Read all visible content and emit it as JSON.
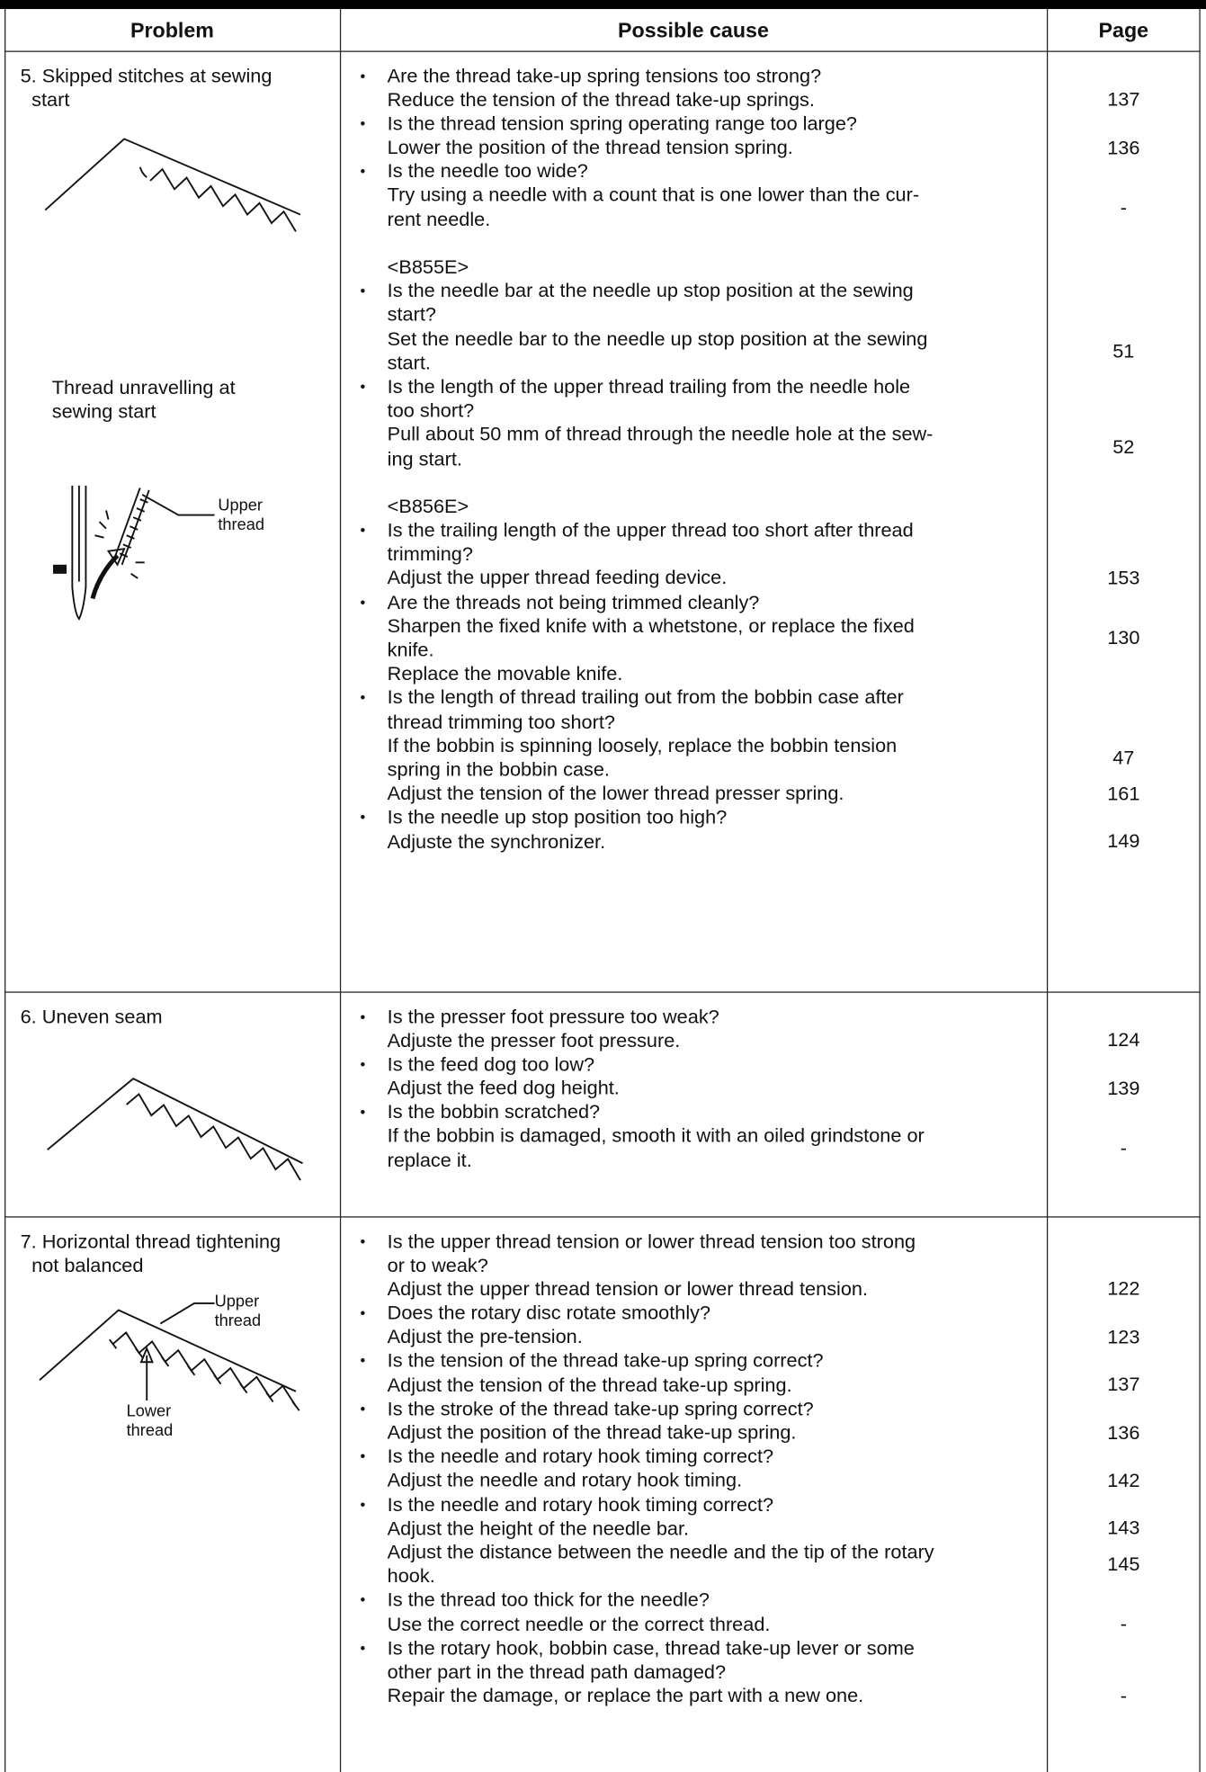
{
  "header": {
    "columns": [
      "Problem",
      "Possible cause",
      "Page"
    ]
  },
  "rows": [
    {
      "problem": [
        "5. Skipped stitches at sewing",
        "start"
      ],
      "note": [
        "Thread unravelling at",
        "sewing start"
      ],
      "figure_labels": [
        "Upper thread"
      ],
      "groups": [
        {
          "items": [
            {
              "question": [
                "Are the thread take-up spring tensions too strong?"
              ],
              "remedies": [
                {
                  "lines": [
                    "Reduce the tension of the thread take-up springs."
                  ],
                  "page": "137"
                }
              ]
            },
            {
              "question": [
                "Is the thread tension spring operating range too large?"
              ],
              "remedies": [
                {
                  "lines": [
                    "Lower the position of the thread tension spring."
                  ],
                  "page": "136"
                }
              ]
            },
            {
              "question": [
                "Is the needle too wide?"
              ],
              "remedies": [
                {
                  "lines": [
                    "Try using a needle with a count that is one lower than the cur-",
                    "rent needle."
                  ],
                  "page": "-"
                }
              ]
            }
          ]
        },
        {
          "model": "<B855E>",
          "items": [
            {
              "question": [
                "Is the needle bar at the needle up stop position at the sewing",
                "start?"
              ],
              "remedies": [
                {
                  "lines": [
                    "Set the needle bar to the needle up stop position at the sewing",
                    "start."
                  ],
                  "page": "51"
                }
              ]
            },
            {
              "question": [
                "Is the length of the upper thread trailing from the needle hole",
                "too short?"
              ],
              "remedies": [
                {
                  "lines": [
                    "Pull about 50 mm of thread through the needle hole at the sew-",
                    "ing start."
                  ],
                  "page": "52"
                }
              ]
            }
          ]
        },
        {
          "model": "<B856E>",
          "items": [
            {
              "question": [
                "Is the trailing length of the upper thread too short after thread",
                "trimming?"
              ],
              "remedies": [
                {
                  "lines": [
                    "Adjust the upper thread feeding device."
                  ],
                  "page": "153"
                }
              ]
            },
            {
              "question": [
                "Are the threads not being trimmed cleanly?"
              ],
              "remedies": [
                {
                  "lines": [
                    "Sharpen the fixed knife with a whetstone, or replace the fixed",
                    "knife."
                  ],
                  "page": "130"
                },
                {
                  "lines": [
                    "Replace the movable knife."
                  ]
                }
              ]
            },
            {
              "question": [
                "Is the length of thread trailing out from the bobbin case after",
                "thread trimming too short?"
              ],
              "remedies": [
                {
                  "lines": [
                    "If the bobbin is spinning loosely, replace the bobbin tension",
                    "spring in the bobbin case."
                  ],
                  "page": "47"
                },
                {
                  "lines": [
                    "Adjust the tension of the lower thread presser spring."
                  ],
                  "page": "161"
                }
              ]
            },
            {
              "question": [
                "Is the needle up stop position too high?"
              ],
              "remedies": [
                {
                  "lines": [
                    "Adjuste the synchronizer."
                  ],
                  "page": "149"
                }
              ]
            }
          ]
        }
      ]
    },
    {
      "problem": [
        "6. Uneven seam"
      ],
      "groups": [
        {
          "items": [
            {
              "question": [
                "Is the presser foot pressure too weak?"
              ],
              "remedies": [
                {
                  "lines": [
                    "Adjuste the presser foot pressure."
                  ],
                  "page": "124"
                }
              ]
            },
            {
              "question": [
                "Is the feed dog too low?"
              ],
              "remedies": [
                {
                  "lines": [
                    "Adjust the feed dog height."
                  ],
                  "page": "139"
                }
              ]
            },
            {
              "question": [
                "Is the bobbin scratched?"
              ],
              "remedies": [
                {
                  "lines": [
                    "If the bobbin is damaged, smooth it with an oiled grindstone or",
                    "replace it."
                  ],
                  "page": "-"
                }
              ]
            }
          ]
        }
      ]
    },
    {
      "problem": [
        "7. Horizontal thread tightening",
        "not balanced"
      ],
      "figure_labels": [
        "Upper thread",
        "Lower thread"
      ],
      "groups": [
        {
          "items": [
            {
              "question": [
                "Is the upper thread tension or lower thread tension too strong",
                "or to weak?"
              ],
              "remedies": [
                {
                  "lines": [
                    "Adjust the upper thread tension or lower thread tension."
                  ],
                  "page": "122"
                }
              ]
            },
            {
              "question": [
                "Does the rotary disc rotate smoothly?"
              ],
              "remedies": [
                {
                  "lines": [
                    "Adjust the pre-tension."
                  ],
                  "page": "123"
                }
              ]
            },
            {
              "question": [
                "Is the tension of the thread take-up spring correct?"
              ],
              "remedies": [
                {
                  "lines": [
                    "Adjust the tension of the thread take-up spring."
                  ],
                  "page": "137"
                }
              ]
            },
            {
              "question": [
                "Is the stroke of the thread take-up spring correct?"
              ],
              "remedies": [
                {
                  "lines": [
                    "Adjust the position of the thread take-up spring."
                  ],
                  "page": "136"
                }
              ]
            },
            {
              "question": [
                "Is the needle and rotary hook timing correct?"
              ],
              "remedies": [
                {
                  "lines": [
                    "Adjust the needle and rotary hook timing."
                  ],
                  "page": "142"
                }
              ]
            },
            {
              "question": [
                "Is the needle and rotary hook timing correct?"
              ],
              "remedies": [
                {
                  "lines": [
                    "Adjust the height of the needle bar."
                  ],
                  "page": "143"
                },
                {
                  "lines": [
                    "Adjust the distance between the needle and the tip of the rotary",
                    "hook."
                  ],
                  "page": "145"
                }
              ]
            },
            {
              "question": [
                "Is the thread too thick for the needle?"
              ],
              "remedies": [
                {
                  "lines": [
                    "Use the correct needle or the correct thread."
                  ],
                  "page": "-"
                }
              ]
            },
            {
              "question": [
                "Is the rotary hook, bobbin case, thread take-up lever or some",
                "other part in the thread path damaged?"
              ],
              "remedies": [
                {
                  "lines": [
                    "Repair the damage, or replace the part with a new one."
                  ],
                  "page": "-"
                }
              ]
            }
          ]
        }
      ]
    }
  ]
}
